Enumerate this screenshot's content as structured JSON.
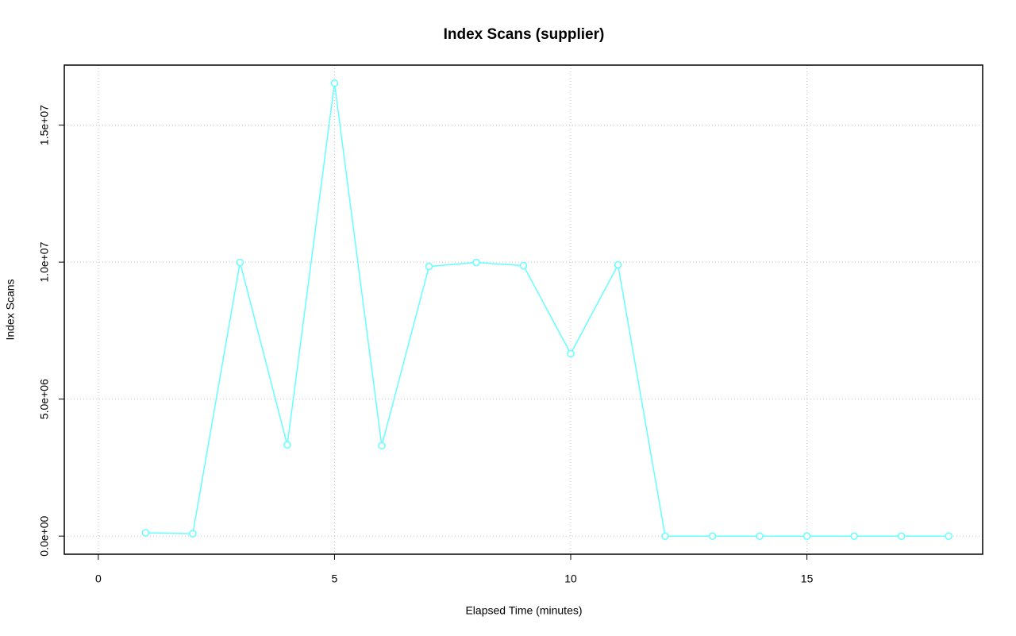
{
  "chart_data": {
    "type": "line",
    "title": "Index Scans (supplier)",
    "x_label": "Elapsed Time (minutes)",
    "y_label": "Index Scans",
    "x": [
      1,
      2,
      3,
      4,
      5,
      6,
      7,
      8,
      9,
      10,
      11,
      12,
      13,
      14,
      15,
      16,
      17,
      18
    ],
    "series": [
      {
        "name": "Index Scans",
        "color": "#66ffff",
        "values": [
          120000,
          90000,
          9990000,
          3330000,
          16530000,
          3300000,
          9840000,
          9990000,
          9870000,
          6660000,
          9900000,
          0,
          0,
          0,
          0,
          0,
          0,
          0
        ]
      }
    ],
    "xlim": [
      -0.72,
      18.72
    ],
    "ylim": [
      -661000,
      17190000
    ],
    "xticks": [
      0,
      5,
      10,
      15
    ],
    "yticks": [
      {
        "value": 0,
        "label": "0.0e+00"
      },
      {
        "value": 5000000,
        "label": "5.0e+06"
      },
      {
        "value": 10000000,
        "label": "1.0e+07"
      },
      {
        "value": 15000000,
        "label": "1.5e+07"
      }
    ],
    "grid": true
  }
}
